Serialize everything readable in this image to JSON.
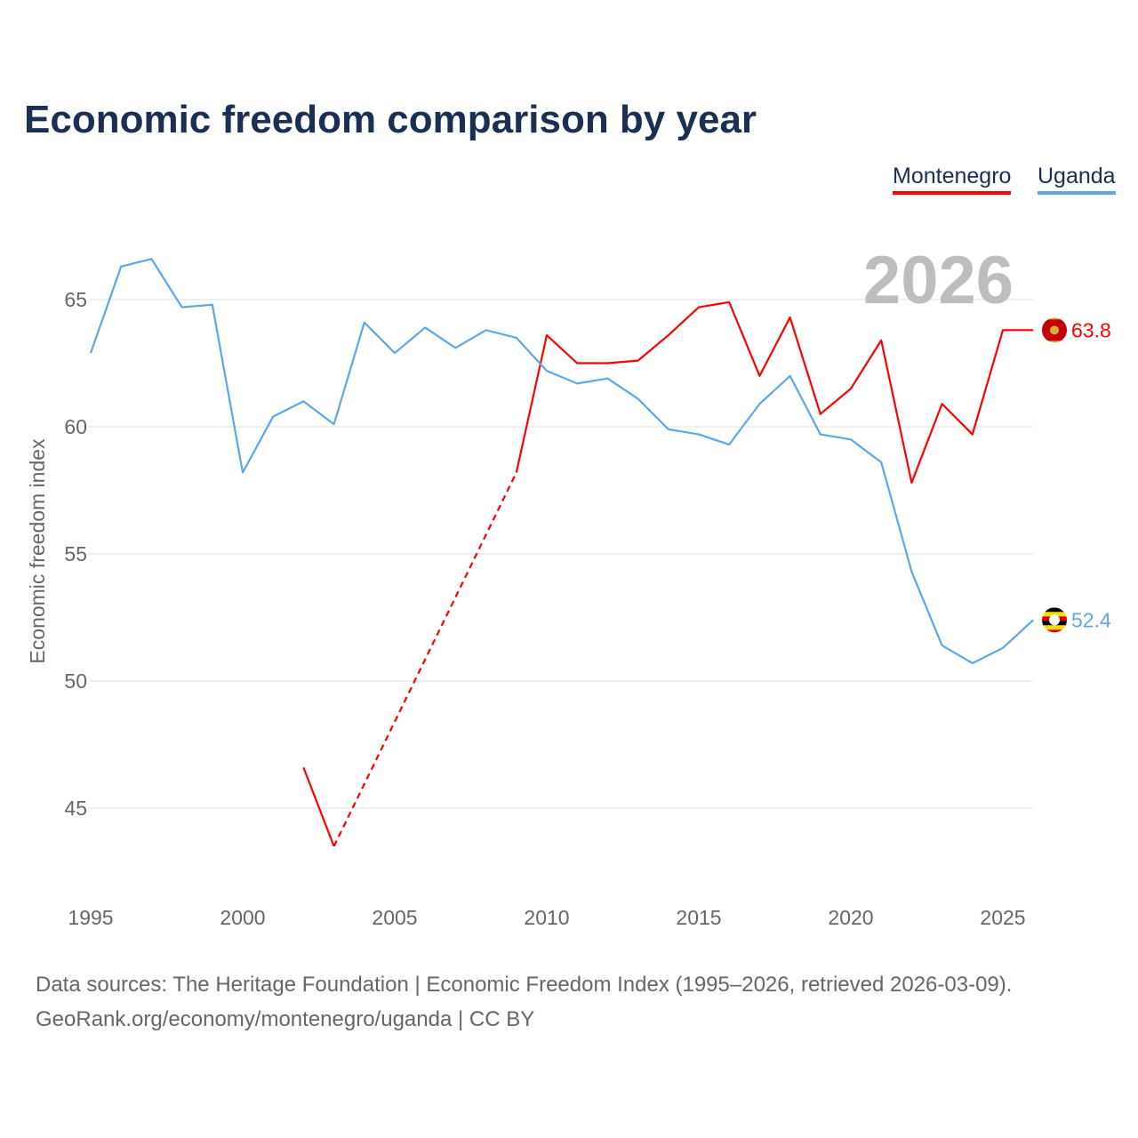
{
  "chart_data": {
    "type": "line",
    "title": "Economic freedom comparison by year",
    "xlabel": "",
    "ylabel": "Economic freedom index",
    "xlim": [
      1995,
      2026
    ],
    "ylim": [
      42,
      68
    ],
    "x_ticks": [
      "1995",
      "2000",
      "2005",
      "2010",
      "2015",
      "2020",
      "2025"
    ],
    "y_ticks": [
      "45",
      "50",
      "55",
      "60",
      "65"
    ],
    "grid": "horizontal",
    "legend_position": "top-right",
    "current_year_label": "2026",
    "series": [
      {
        "name": "Montenegro",
        "color": "#ff0000",
        "end_label": "63.8",
        "flag": "montenegro-flag",
        "x": [
          2002,
          2003,
          2004,
          2005,
          2006,
          2007,
          2008,
          2009,
          2010,
          2011,
          2012,
          2013,
          2014,
          2015,
          2016,
          2017,
          2018,
          2019,
          2020,
          2021,
          2022,
          2023,
          2024,
          2025,
          2026
        ],
        "values": [
          46.6,
          43.5,
          null,
          null,
          null,
          null,
          null,
          58.2,
          63.6,
          62.5,
          62.5,
          62.6,
          63.6,
          64.7,
          64.9,
          62.0,
          64.3,
          60.5,
          61.5,
          63.4,
          57.8,
          60.9,
          59.7,
          63.8,
          63.8
        ]
      },
      {
        "name": "Uganda",
        "color": "#5ea6e8",
        "end_label": "52.4",
        "flag": "uganda-flag",
        "x": [
          1995,
          1996,
          1997,
          1998,
          1999,
          2000,
          2001,
          2002,
          2003,
          2004,
          2005,
          2006,
          2007,
          2008,
          2009,
          2010,
          2011,
          2012,
          2013,
          2014,
          2015,
          2016,
          2017,
          2018,
          2019,
          2020,
          2021,
          2022,
          2023,
          2024,
          2025,
          2026
        ],
        "values": [
          62.9,
          66.3,
          66.6,
          64.7,
          64.8,
          58.2,
          60.4,
          61.0,
          60.1,
          64.1,
          62.9,
          63.9,
          63.1,
          63.8,
          63.5,
          62.2,
          61.7,
          61.9,
          61.1,
          59.9,
          59.7,
          59.3,
          60.9,
          62.0,
          59.7,
          59.5,
          58.6,
          54.3,
          51.4,
          50.7,
          51.3,
          52.4
        ]
      }
    ]
  },
  "footer": {
    "line1": "Data sources: The Heritage Foundation | Economic Freedom Index (1995–2026, retrieved 2026-03-09).",
    "line2": "GeoRank.org/economy/montenegro/uganda | CC BY"
  }
}
